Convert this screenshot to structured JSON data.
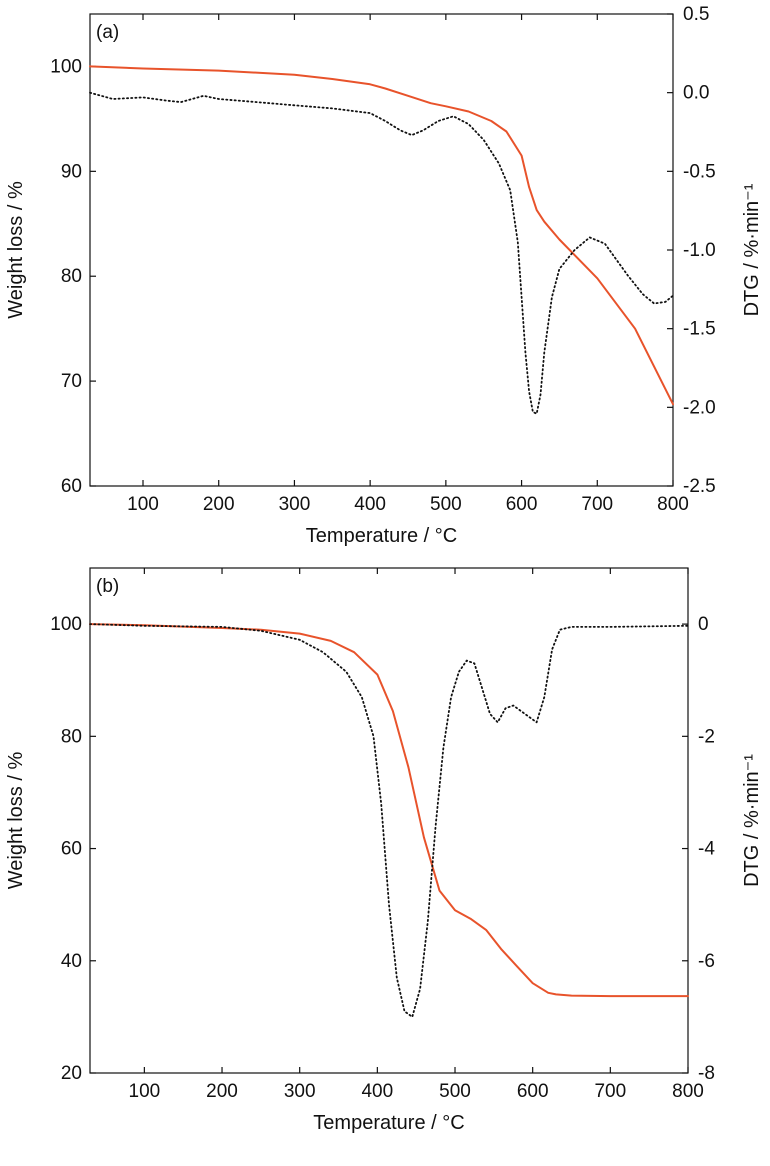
{
  "colors": {
    "weight_curve": "#e8532b",
    "dtg_curve": "#111111",
    "axis": "#111111",
    "background": "#ffffff"
  },
  "chart_data": [
    {
      "type": "line",
      "panel_label": "(a)",
      "xlabel": "Temperature / °C",
      "ylabel_left": "Weight loss / %",
      "ylabel_right": "DTG / %·min⁻¹",
      "xlim": [
        30,
        800
      ],
      "ylim_left": [
        60,
        105
      ],
      "ylim_right": [
        -2.5,
        0.5
      ],
      "x_ticks": [
        100,
        200,
        300,
        400,
        500,
        600,
        700,
        800
      ],
      "y_left_ticks": [
        60,
        70,
        80,
        90,
        100
      ],
      "y_right_ticks": [
        0.5,
        0.0,
        -0.5,
        -1.0,
        -1.5,
        -2.0,
        -2.5
      ],
      "y_right_tick_labels": [
        "0.5",
        "0.0",
        "-0.5",
        "-1.0",
        "-1.5",
        "-2.0",
        "-2.5"
      ],
      "grid": false,
      "series": [
        {
          "axis": "left",
          "style": "solid",
          "x": [
            30,
            100,
            200,
            300,
            350,
            400,
            420,
            450,
            480,
            500,
            530,
            560,
            580,
            600,
            610,
            620,
            630,
            650,
            700,
            750,
            800
          ],
          "y": [
            100,
            99.8,
            99.6,
            99.2,
            98.8,
            98.3,
            97.9,
            97.2,
            96.5,
            96.2,
            95.7,
            94.8,
            93.8,
            91.5,
            88.5,
            86.3,
            85.2,
            83.5,
            79.8,
            75,
            67.8
          ]
        },
        {
          "axis": "right",
          "style": "dotted",
          "x": [
            30,
            60,
            100,
            130,
            150,
            180,
            200,
            250,
            300,
            350,
            400,
            420,
            440,
            455,
            470,
            490,
            510,
            530,
            550,
            570,
            585,
            595,
            600,
            605,
            610,
            615,
            620,
            625,
            630,
            640,
            650,
            670,
            690,
            710,
            740,
            760,
            775,
            790,
            800
          ],
          "y": [
            0.0,
            -0.04,
            -0.03,
            -0.05,
            -0.06,
            -0.02,
            -0.04,
            -0.06,
            -0.08,
            -0.1,
            -0.13,
            -0.18,
            -0.24,
            -0.27,
            -0.24,
            -0.18,
            -0.15,
            -0.2,
            -0.3,
            -0.45,
            -0.62,
            -0.95,
            -1.3,
            -1.65,
            -1.9,
            -2.03,
            -2.04,
            -1.92,
            -1.65,
            -1.3,
            -1.12,
            -1.0,
            -0.92,
            -0.96,
            -1.16,
            -1.28,
            -1.34,
            -1.33,
            -1.29
          ]
        }
      ]
    },
    {
      "type": "line",
      "panel_label": "(b)",
      "xlabel": "Temperature / °C",
      "ylabel_left": "Weight loss / %",
      "ylabel_right": "DTG / %·min⁻¹",
      "xlim": [
        30,
        800
      ],
      "ylim_left": [
        20,
        110
      ],
      "ylim_right": [
        -8,
        1
      ],
      "x_ticks": [
        100,
        200,
        300,
        400,
        500,
        600,
        700,
        800
      ],
      "y_left_ticks": [
        20,
        40,
        60,
        80,
        100
      ],
      "y_right_ticks": [
        0,
        -2,
        -4,
        -6,
        -8
      ],
      "y_right_tick_labels": [
        "0",
        "-2",
        "-4",
        "-6",
        "-8"
      ],
      "grid": false,
      "series": [
        {
          "axis": "left",
          "style": "solid",
          "x": [
            30,
            100,
            200,
            250,
            300,
            340,
            370,
            400,
            420,
            440,
            460,
            480,
            500,
            520,
            540,
            560,
            580,
            600,
            620,
            630,
            650,
            700,
            800
          ],
          "y": [
            100,
            99.8,
            99.3,
            99,
            98.3,
            97,
            95,
            91,
            84.5,
            74.5,
            62,
            52.5,
            49,
            47.5,
            45.5,
            42,
            39,
            36,
            34.3,
            34,
            33.8,
            33.7,
            33.7
          ]
        },
        {
          "axis": "right",
          "style": "dotted",
          "x": [
            30,
            100,
            200,
            250,
            300,
            330,
            360,
            380,
            395,
            405,
            415,
            425,
            435,
            445,
            455,
            465,
            475,
            485,
            495,
            505,
            515,
            525,
            535,
            545,
            555,
            565,
            575,
            590,
            605,
            615,
            625,
            635,
            650,
            700,
            800
          ],
          "y": [
            0,
            -0.03,
            -0.05,
            -0.12,
            -0.28,
            -0.5,
            -0.85,
            -1.3,
            -2.0,
            -3.2,
            -5.0,
            -6.3,
            -6.9,
            -7.0,
            -6.5,
            -5.3,
            -3.6,
            -2.2,
            -1.3,
            -0.85,
            -0.65,
            -0.7,
            -1.15,
            -1.6,
            -1.75,
            -1.5,
            -1.45,
            -1.6,
            -1.75,
            -1.3,
            -0.45,
            -0.1,
            -0.05,
            -0.05,
            -0.03
          ]
        }
      ]
    }
  ]
}
